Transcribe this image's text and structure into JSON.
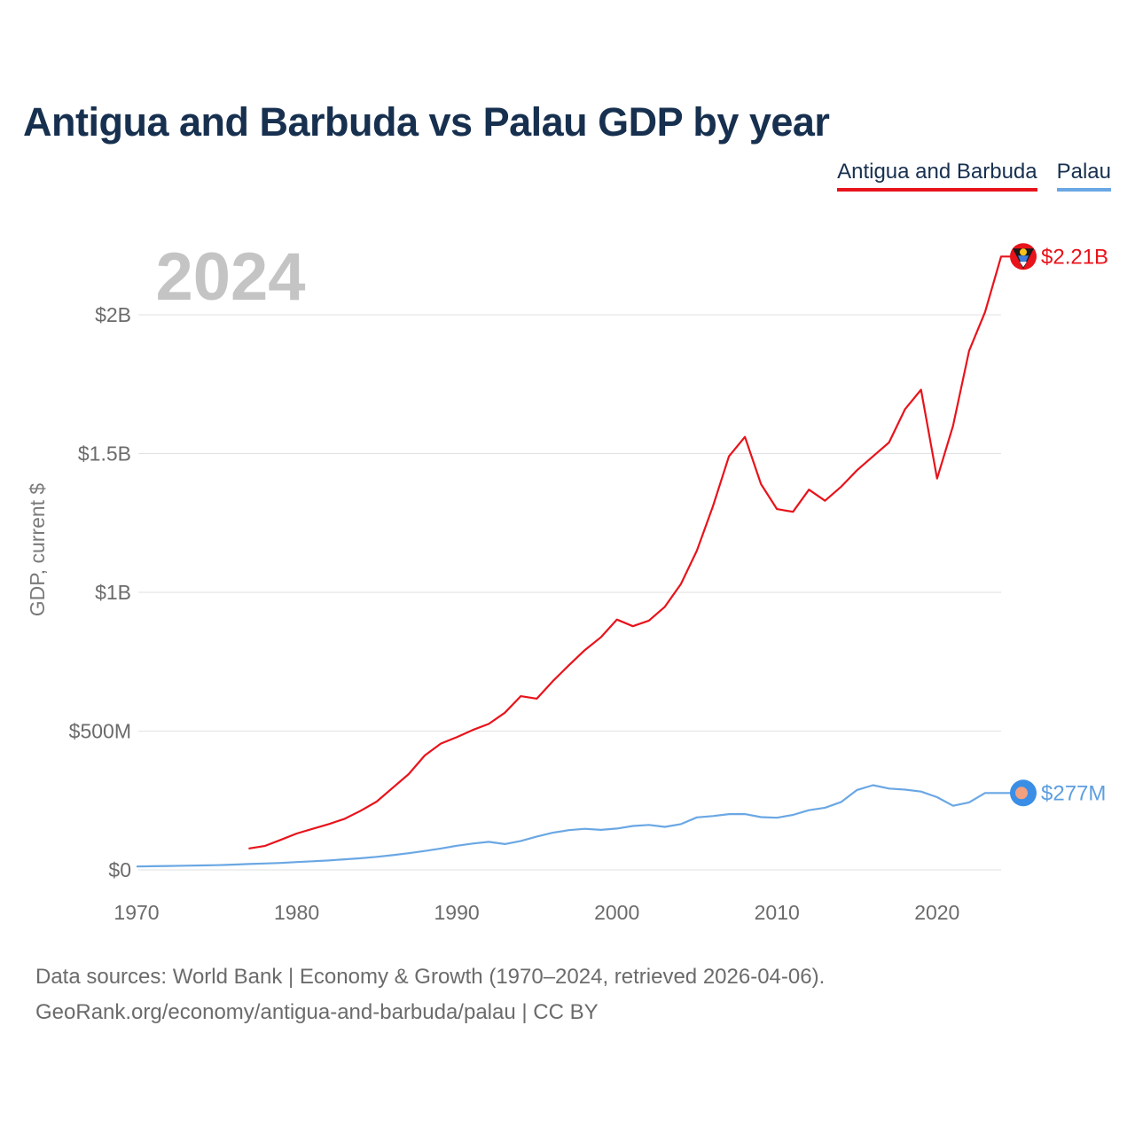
{
  "header": {
    "title": "Antigua and Barbuda vs Palau GDP by year"
  },
  "legend": {
    "series_a": "Antigua and Barbuda",
    "series_b": "Palau"
  },
  "footer": {
    "line1": "Data sources: World Bank | Economy & Growth (1970–2024, retrieved 2026-04-06).",
    "line2": "GeoRank.org/economy/antigua-and-barbuda/palau | CC BY"
  },
  "chart_data": {
    "type": "line",
    "title": "Antigua and Barbuda vs Palau GDP by year",
    "year_label": "2024",
    "xlabel": "",
    "ylabel": "GDP, current $",
    "xlim": [
      1970,
      2024
    ],
    "ylim": [
      0,
      2300000000
    ],
    "x_ticks": [
      1970,
      1980,
      1990,
      2000,
      2010,
      2020
    ],
    "x_tick_labels": [
      "1970",
      "1980",
      "1990",
      "2000",
      "2010",
      "2020"
    ],
    "y_ticks": [
      0,
      500000000,
      1000000000,
      1500000000,
      2000000000
    ],
    "y_tick_labels": [
      "$0",
      "$500M",
      "$1B",
      "$1.5B",
      "$2B"
    ],
    "grid": true,
    "legend_position": "top-right",
    "series": [
      {
        "name": "Antigua and Barbuda",
        "color": "#e8131b",
        "end_label": "$2.21B",
        "end_marker": "antigua-and-barbuda-flag-icon",
        "x": [
          1977,
          1978,
          1979,
          1980,
          1981,
          1982,
          1983,
          1984,
          1985,
          1986,
          1987,
          1988,
          1989,
          1990,
          1991,
          1992,
          1993,
          1994,
          1995,
          1996,
          1997,
          1998,
          1999,
          2000,
          2001,
          2002,
          2003,
          2004,
          2005,
          2006,
          2007,
          2008,
          2009,
          2010,
          2011,
          2012,
          2013,
          2014,
          2015,
          2016,
          2017,
          2018,
          2019,
          2020,
          2021,
          2022,
          2023,
          2024
        ],
        "values": [
          77000000,
          86000000,
          108000000,
          131000000,
          148000000,
          165000000,
          184000000,
          213000000,
          246000000,
          296000000,
          345000000,
          412000000,
          455000000,
          478000000,
          504000000,
          526000000,
          566000000,
          626000000,
          617000000,
          680000000,
          737000000,
          792000000,
          838000000,
          902000000,
          878000000,
          898000000,
          948000000,
          1030000000,
          1150000000,
          1310000000,
          1490000000,
          1560000000,
          1390000000,
          1300000000,
          1290000000,
          1370000000,
          1330000000,
          1380000000,
          1440000000,
          1490000000,
          1540000000,
          1660000000,
          1730000000,
          1410000000,
          1600000000,
          1870000000,
          2010000000,
          2210000000
        ]
      },
      {
        "name": "Palau",
        "color": "#6aa7e4",
        "end_label": "$277M",
        "end_marker": "palau-flag-icon",
        "x": [
          1970,
          1971,
          1972,
          1973,
          1974,
          1975,
          1976,
          1977,
          1978,
          1979,
          1980,
          1981,
          1982,
          1983,
          1984,
          1985,
          1986,
          1987,
          1988,
          1989,
          1990,
          1991,
          1992,
          1993,
          1994,
          1995,
          1996,
          1997,
          1998,
          1999,
          2000,
          2001,
          2002,
          2003,
          2004,
          2005,
          2006,
          2007,
          2008,
          2009,
          2010,
          2011,
          2012,
          2013,
          2014,
          2015,
          2016,
          2017,
          2018,
          2019,
          2020,
          2021,
          2022,
          2023,
          2024
        ],
        "values": [
          12000000,
          13000000,
          14000000,
          15000000,
          16000000,
          17000000,
          19000000,
          21000000,
          23000000,
          25000000,
          28000000,
          31000000,
          34000000,
          38000000,
          42000000,
          47000000,
          53000000,
          60000000,
          68000000,
          77000000,
          87000000,
          95000000,
          101000000,
          93000000,
          104000000,
          120000000,
          134000000,
          143000000,
          148000000,
          144000000,
          149000000,
          158000000,
          162000000,
          155000000,
          165000000,
          189000000,
          194000000,
          201000000,
          201000000,
          190000000,
          188000000,
          198000000,
          215000000,
          224000000,
          244000000,
          288000000,
          305000000,
          293000000,
          289000000,
          282000000,
          262000000,
          231000000,
          243000000,
          277000000,
          277000000
        ]
      }
    ]
  }
}
